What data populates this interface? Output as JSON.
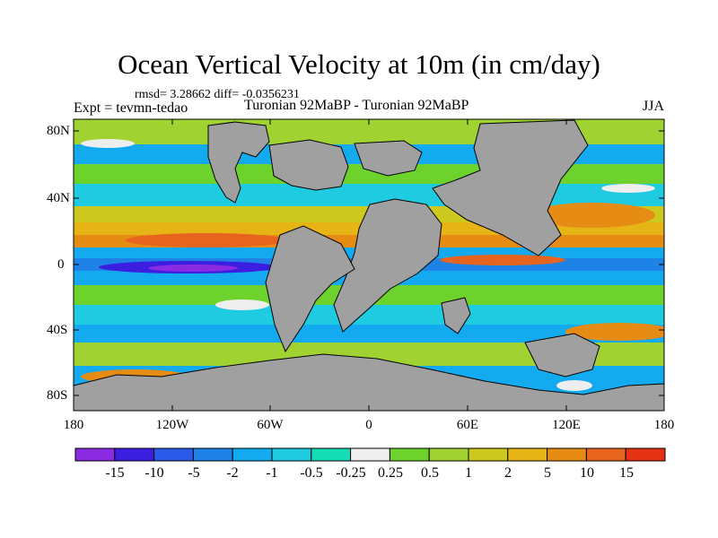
{
  "title": "Ocean Vertical Velocity at 10m (in cm/day)",
  "stats": "rmsd= 3.28662 diff= -0.0356231",
  "expt": "Expt = tevmn-tedao",
  "experiments": "Turonian  92MaBP - Turonian  92MaBP",
  "season": "JJA",
  "map": {
    "lat_labels": [
      "80N",
      "40N",
      "0",
      "40S",
      "80S"
    ],
    "lon_labels": [
      "180",
      "120W",
      "60W",
      "0",
      "60E",
      "120E",
      "180"
    ],
    "land_color": "#a0a0a0",
    "coastline_color": "#000000"
  },
  "colorbar": {
    "colors": [
      "#8a2be2",
      "#3c1ee0",
      "#2a5ae8",
      "#1e82e6",
      "#14aaf0",
      "#1ecbe0",
      "#14dcb4",
      "#eeeeee",
      "#6ed22c",
      "#a0d232",
      "#cdc81e",
      "#e6b414",
      "#e68c14",
      "#e6641e",
      "#e63214"
    ],
    "labels": [
      "-15",
      "-10",
      "-5",
      "-2",
      "-1",
      "-0.5",
      "-0.25",
      "0.25",
      "0.5",
      "1",
      "2",
      "5",
      "10",
      "15"
    ]
  }
}
